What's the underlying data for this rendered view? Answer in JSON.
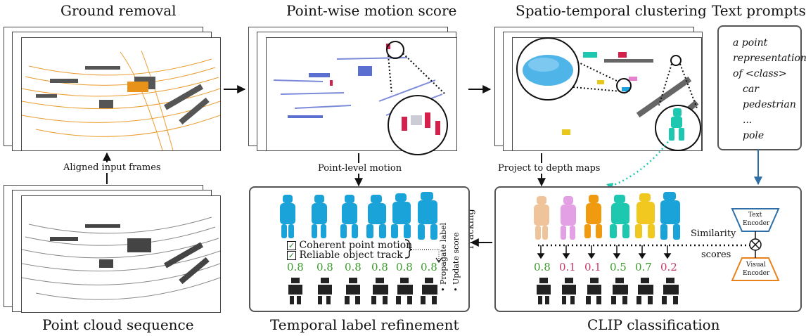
{
  "titles": {
    "ground_removal": "Ground removal",
    "motion_score": "Point-wise motion score",
    "clustering": "Spatio-temporal clustering",
    "text_prompts": "Text prompts",
    "sequence": "Point cloud sequence",
    "refinement": "Temporal label refinement",
    "clip": "CLIP classification"
  },
  "labels": {
    "aligned": "Aligned input frames",
    "point_level": "Point-level motion",
    "project": "Project to depth maps",
    "tracking": "Tracking",
    "similarity": "Similarity",
    "scores": "scores",
    "text_encoder_1": "Text",
    "text_encoder_2": "Encoder",
    "visual_encoder_1": "Visual",
    "visual_encoder_2": "Encoder"
  },
  "prompt": {
    "line1": "a point",
    "line2": "representation",
    "line3": "of <class>",
    "classes": [
      "car",
      "pedestrian",
      "...",
      "pole"
    ]
  },
  "refinement": {
    "check1": "Coherent point motion",
    "check2": "Reliable object track",
    "propagate": "• Propagate label",
    "update": "• Update score",
    "scores": [
      "0.8",
      "0.8",
      "0.8",
      "0.8",
      "0.8",
      "0.8"
    ]
  },
  "clip": {
    "scores": [
      "0.8",
      "0.1",
      "0.1",
      "0.5",
      "0.7",
      "0.2"
    ]
  },
  "colors": {
    "ground": "#e8921a",
    "motion_blue": "#5b6fd0",
    "motion_red": "#d4204a",
    "ped_blue": "#1aa3d8",
    "score_green": "#3a9a2a",
    "score_red": "#c8386a",
    "text_enc": "#2e6fa8",
    "vis_enc": "#e8821a",
    "teal": "#1ec8b0",
    "car_blue": "#4fb4e8"
  }
}
